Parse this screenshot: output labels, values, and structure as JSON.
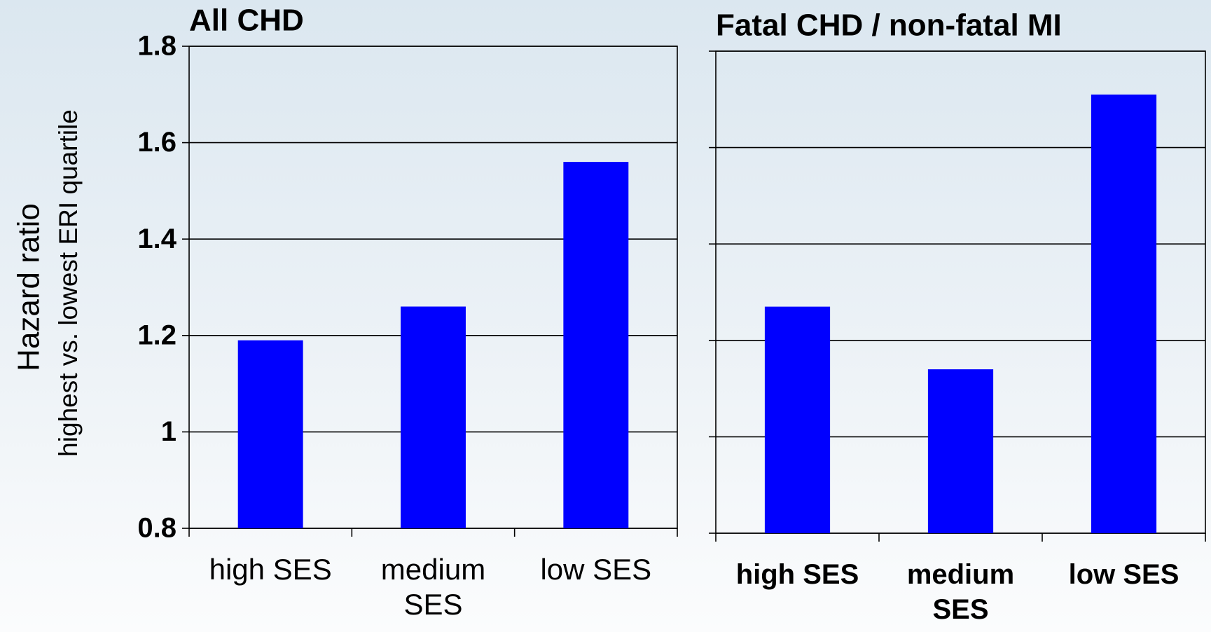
{
  "chart_data": [
    {
      "type": "bar",
      "title": "All CHD",
      "ylabel": "Hazard ratio",
      "ylabel_sub": "highest vs. lowest ERI quartile",
      "categories": [
        "high SES",
        "medium SES",
        "low SES"
      ],
      "values": [
        1.19,
        1.26,
        1.56
      ],
      "color": "#0000ff",
      "ylim": [
        0.8,
        1.8
      ],
      "yticks": [
        0.8,
        1,
        1.2,
        1.4,
        1.6,
        1.8
      ],
      "grid": true,
      "tick_labels": true,
      "bold_categories": false
    },
    {
      "type": "bar",
      "title": "Fatal CHD / non-fatal MI",
      "categories": [
        "high SES",
        "medium SES",
        "low SES"
      ],
      "values": [
        1.27,
        1.14,
        1.71
      ],
      "color": "#0000ff",
      "ylim": [
        0.8,
        1.8
      ],
      "yticks": [
        0.8,
        1,
        1.2,
        1.4,
        1.6,
        1.8
      ],
      "grid": true,
      "tick_labels": false,
      "bold_categories": true
    }
  ]
}
